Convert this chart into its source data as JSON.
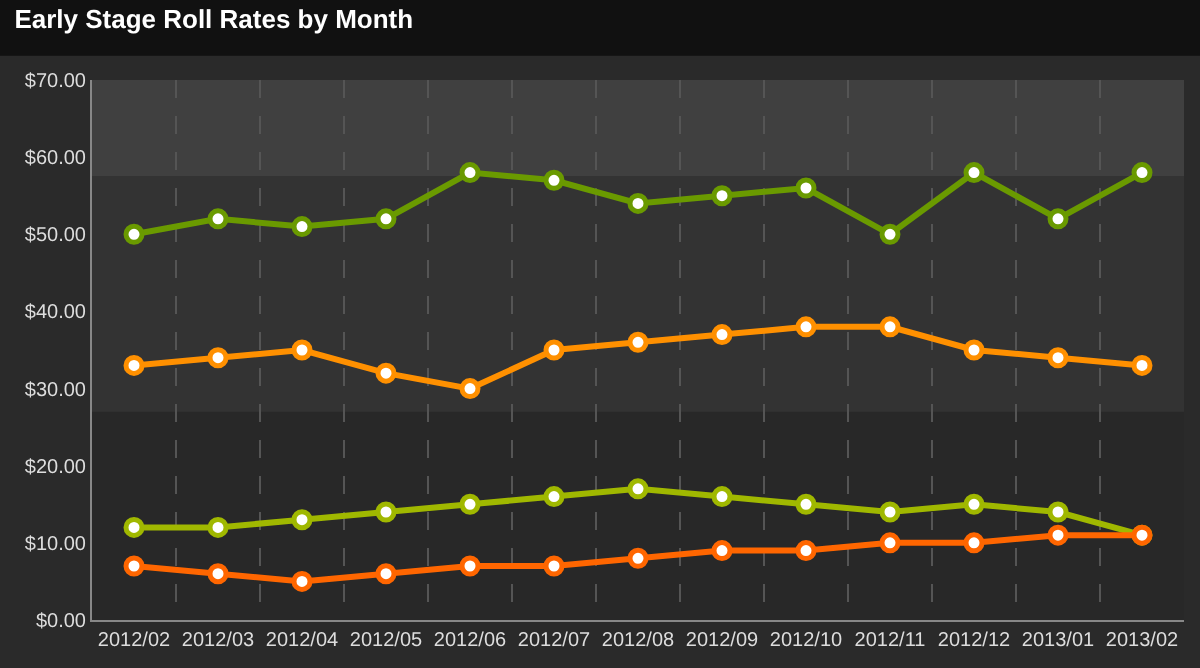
{
  "chart_data": {
    "type": "line",
    "title": "Early Stage Roll Rates by Month",
    "categories": [
      "2012/02",
      "2012/03",
      "2012/04",
      "2012/05",
      "2012/06",
      "2012/07",
      "2012/08",
      "2012/09",
      "2012/10",
      "2012/11",
      "2012/12",
      "2013/01",
      "2013/02"
    ],
    "series": [
      {
        "color": "#6a9a00",
        "values": [
          50,
          52,
          51,
          52,
          58,
          57,
          54,
          55,
          56,
          50,
          58,
          52,
          58
        ]
      },
      {
        "color": "#ff9000",
        "values": [
          33,
          34,
          35,
          32,
          30,
          35,
          36,
          37,
          38,
          38,
          35,
          34,
          33
        ]
      },
      {
        "color": "#a0b800",
        "values": [
          12,
          12,
          13,
          14,
          15,
          16,
          17,
          16,
          15,
          14,
          15,
          14,
          11
        ]
      },
      {
        "color": "#ff6600",
        "values": [
          7,
          6,
          5,
          6,
          7,
          7,
          8,
          9,
          9,
          10,
          10,
          11,
          11
        ]
      }
    ],
    "ylim": [
      0,
      70
    ],
    "yticks": [
      {
        "value": 0,
        "label": "$0.00"
      },
      {
        "value": 10,
        "label": "$10.00"
      },
      {
        "value": 20,
        "label": "$20.00"
      },
      {
        "value": 30,
        "label": "$30.00"
      },
      {
        "value": 40,
        "label": "$40.00"
      },
      {
        "value": 50,
        "label": "$50.00"
      },
      {
        "value": 60,
        "label": "$60.00"
      },
      {
        "value": 70,
        "label": "$70.00"
      }
    ],
    "bands": [
      {
        "axis": "y",
        "from": 57.5,
        "to": 70,
        "color": "#404040"
      },
      {
        "axis": "y",
        "from": 27,
        "to": 57.5,
        "color": "#333333"
      }
    ],
    "grid": "x",
    "marker": "circle",
    "line_style": "solid"
  }
}
